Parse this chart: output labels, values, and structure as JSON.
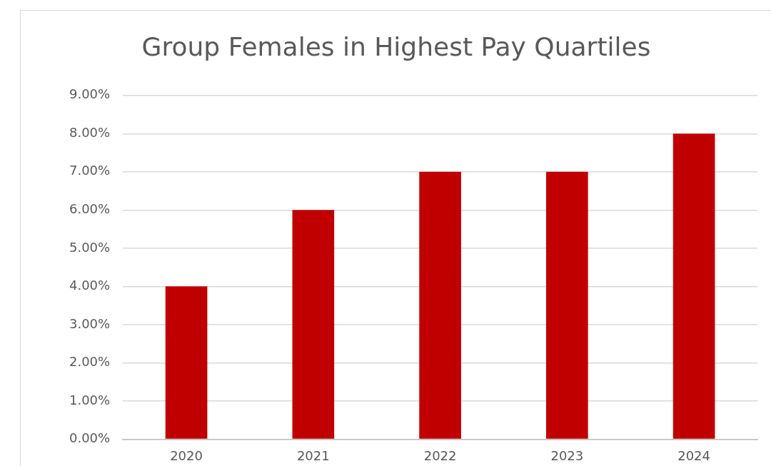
{
  "chart_data": {
    "type": "bar",
    "title": "Group Females in Highest Pay Quartiles",
    "categories": [
      "2020",
      "2021",
      "2022",
      "2023",
      "2024"
    ],
    "values": [
      4,
      6,
      7,
      7,
      8
    ],
    "color": "#c00000",
    "ylim": [
      0,
      9
    ],
    "yticks": [
      {
        "value": 0,
        "label": "0.00%"
      },
      {
        "value": 1,
        "label": "1.00%"
      },
      {
        "value": 2,
        "label": "2.00%"
      },
      {
        "value": 3,
        "label": "3.00%"
      },
      {
        "value": 4,
        "label": "4.00%"
      },
      {
        "value": 5,
        "label": "5.00%"
      },
      {
        "value": 6,
        "label": "6.00%"
      },
      {
        "value": 7,
        "label": "7.00%"
      },
      {
        "value": 8,
        "label": "8.00%"
      },
      {
        "value": 9,
        "label": "9.00%"
      }
    ],
    "grid": "y"
  }
}
